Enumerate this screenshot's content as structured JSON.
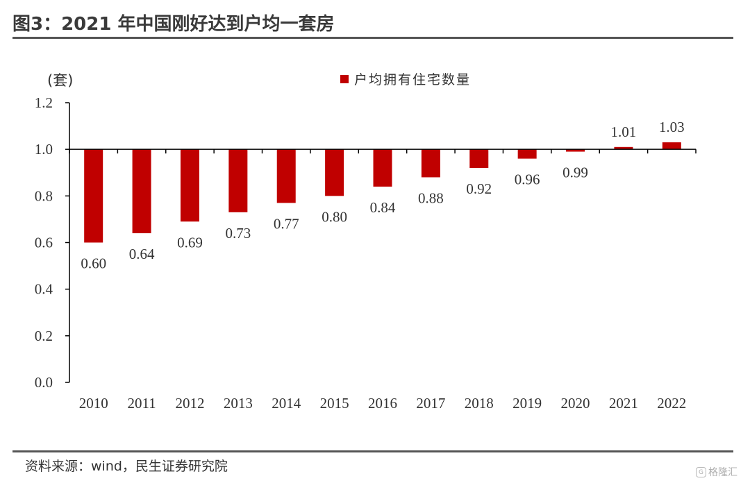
{
  "header": {
    "title": "图3：2021 年中国刚好达到户均一套房"
  },
  "footer": {
    "source": "资料来源：wind，民生证券研究院",
    "watermark": "格隆汇",
    "watermark_mark": "G"
  },
  "colors": {
    "bar": "#C00000",
    "text": "#333333",
    "axis": "#000000"
  },
  "chart_data": {
    "type": "bar",
    "ylabel": "(套)",
    "ylim": [
      0,
      1.2
    ],
    "yticks": [
      0.0,
      0.2,
      0.4,
      0.6,
      0.8,
      1.0,
      1.2
    ],
    "ytick_labels": [
      "0.0",
      "0.2",
      "0.4",
      "0.6",
      "0.8",
      "1.0",
      "1.2"
    ],
    "baseline": 1.0,
    "categories": [
      "2010",
      "2011",
      "2012",
      "2013",
      "2014",
      "2015",
      "2016",
      "2017",
      "2018",
      "2019",
      "2020",
      "2021",
      "2022"
    ],
    "series": [
      {
        "name": "户均拥有住宅数量",
        "values": [
          0.6,
          0.64,
          0.69,
          0.73,
          0.77,
          0.8,
          0.84,
          0.88,
          0.92,
          0.96,
          0.99,
          1.01,
          1.03
        ],
        "labels": [
          "0.60",
          "0.64",
          "0.69",
          "0.73",
          "0.77",
          "0.80",
          "0.84",
          "0.88",
          "0.92",
          "0.96",
          "0.99",
          "1.01",
          "1.03"
        ]
      }
    ],
    "legend": "top-center",
    "grid": false
  }
}
